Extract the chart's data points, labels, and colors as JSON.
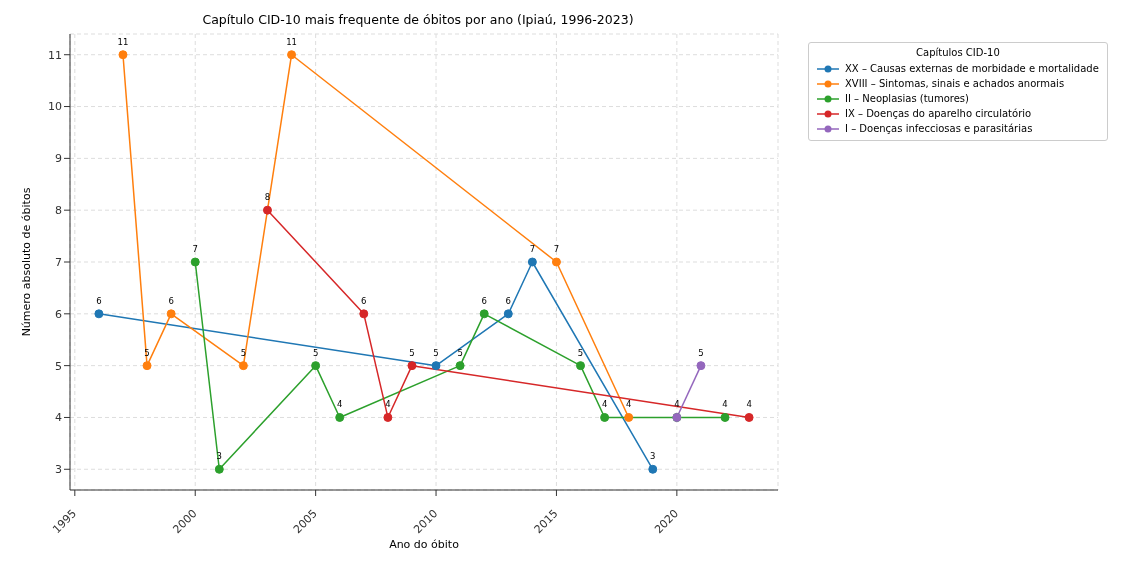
{
  "chart_data": {
    "type": "line",
    "title": "Capítulo CID-10 mais frequente de óbitos por ano (Ipiaú, 1996-2023)",
    "xlabel": "Ano do óbito",
    "ylabel": "Número absoluto de óbitos",
    "legend_title": "Capítulos CID-10",
    "legend": "right",
    "grid": true,
    "marker": "circle",
    "line_style": "solid",
    "xlim": [
      1994.8,
      2024.2
    ],
    "xticks": [
      1995,
      2000,
      2005,
      2010,
      2015,
      2020
    ],
    "ylim": [
      2.6,
      11.4
    ],
    "yticks": [
      3,
      4,
      5,
      6,
      7,
      8,
      9,
      10,
      11
    ],
    "series": [
      {
        "name": "XX – Causas externas de morbidade e mortalidade",
        "color": "#1f77b4",
        "x": [
          1996,
          2010,
          2013,
          2014,
          2019
        ],
        "values": [
          6,
          5,
          6,
          7,
          3
        ],
        "value_labels": [
          "6",
          "5",
          "6",
          "7",
          "3"
        ]
      },
      {
        "name": "XVIII – Sintomas, sinais e achados anormais",
        "color": "#ff7f0e",
        "x": [
          1997,
          1998,
          1999,
          2002,
          2004,
          2015,
          2018
        ],
        "values": [
          11,
          5,
          6,
          5,
          11,
          7,
          4
        ],
        "value_labels": [
          "11",
          "5",
          "6",
          "5",
          "11",
          "7",
          "4"
        ]
      },
      {
        "name": "II – Neoplasias (tumores)",
        "color": "#2ca02c",
        "x": [
          2000,
          2001,
          2005,
          2006,
          2011,
          2012,
          2016,
          2017,
          2020,
          2022
        ],
        "values": [
          7,
          3,
          5,
          4,
          5,
          6,
          5,
          4,
          4,
          4
        ],
        "value_labels": [
          "7",
          "3",
          "5",
          "4",
          "5",
          "6",
          "5",
          "4",
          "4",
          "4"
        ]
      },
      {
        "name": "IX – Doenças do aparelho circulatório",
        "color": "#d62728",
        "x": [
          2003,
          2007,
          2008,
          2009,
          2023
        ],
        "values": [
          8,
          6,
          4,
          5,
          4
        ],
        "value_labels": [
          "8",
          "6",
          "4",
          "5",
          "4"
        ]
      },
      {
        "name": "I – Doenças infecciosas e parasitárias",
        "color": "#9467bd",
        "x": [
          2020,
          2021
        ],
        "values": [
          4,
          5
        ],
        "value_labels": [
          null,
          "5"
        ]
      }
    ]
  }
}
